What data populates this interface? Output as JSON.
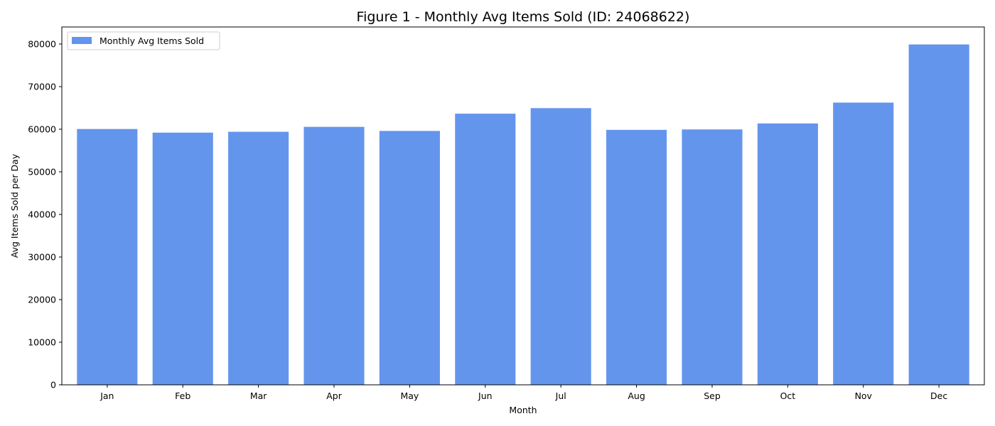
{
  "chart_data": {
    "type": "bar",
    "title": "Figure 1 - Monthly Avg Items Sold (ID: 24068622)",
    "xlabel": "Month",
    "ylabel": "Avg Items Sold per Day",
    "categories": [
      "Jan",
      "Feb",
      "Mar",
      "Apr",
      "May",
      "Jun",
      "Jul",
      "Aug",
      "Sep",
      "Oct",
      "Nov",
      "Dec"
    ],
    "series": [
      {
        "name": "Monthly Avg Items Sold",
        "values": [
          60050,
          59200,
          59400,
          60550,
          59600,
          63650,
          64950,
          59850,
          59950,
          61350,
          66250,
          79900
        ],
        "color": "#6495ED"
      }
    ],
    "ylim": [
      0,
      84000
    ],
    "yticks": [
      0,
      10000,
      20000,
      30000,
      40000,
      50000,
      60000,
      70000,
      80000
    ],
    "ytick_labels": [
      "0",
      "10000",
      "20000",
      "30000",
      "40000",
      "50000",
      "60000",
      "70000",
      "80000"
    ],
    "grid": false,
    "legend_position": "upper-left"
  }
}
